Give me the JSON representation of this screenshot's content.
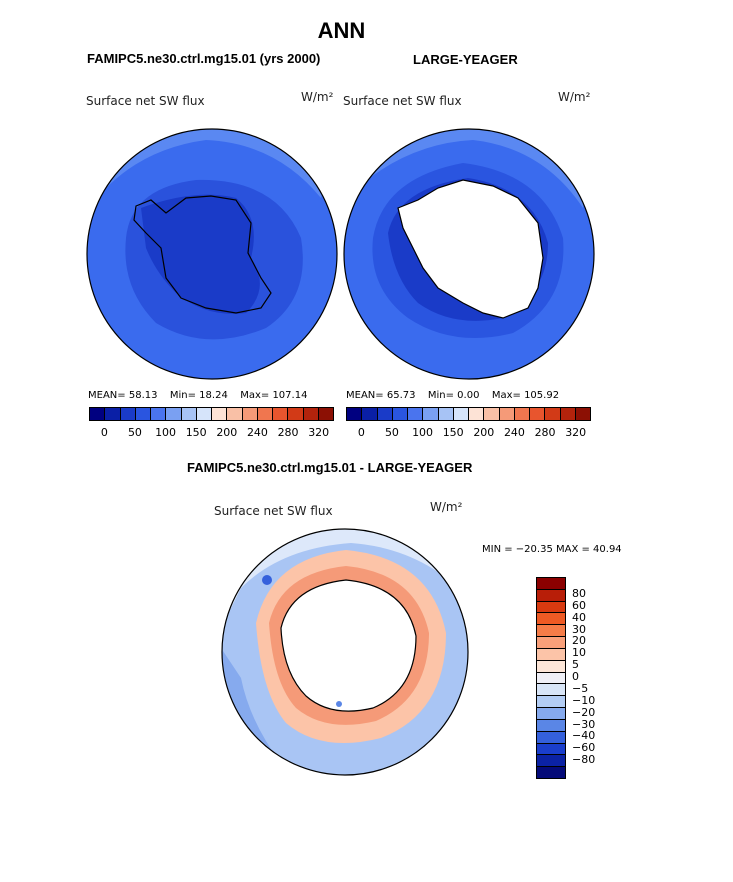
{
  "page_title": "ANN",
  "panels": [
    {
      "header": "FAMIPC5.ne30.ctrl.mg15.01 (yrs 2000)",
      "variable": "Surface net SW flux",
      "units": "W/m²",
      "stats": {
        "mean_label": "MEAN=",
        "mean": "58.13",
        "min_label": "Min=",
        "min": "18.24",
        "max_label": "Max=",
        "max": "107.14"
      }
    },
    {
      "header": "LARGE-YEAGER",
      "variable": "Surface net SW flux",
      "units": "W/m²",
      "stats": {
        "mean_label": "MEAN=",
        "mean": "65.73",
        "min_label": "Min=",
        "min": "0.00",
        "max_label": "Max=",
        "max": "105.92"
      }
    },
    {
      "header": "FAMIPC5.ne30.ctrl.mg15.01 - LARGE-YEAGER",
      "variable": "Surface net SW flux",
      "units": "W/m²",
      "stats": {
        "range_text": "MIN = −20.35 MAX =  40.94"
      }
    }
  ],
  "colorbars": {
    "absolute": {
      "colors": [
        "#000080",
        "#0a1fa6",
        "#1a3bc8",
        "#2a55e0",
        "#4a74ee",
        "#7aa0f2",
        "#a7c3f5",
        "#d6e4fa",
        "#fde3d6",
        "#f9c0a6",
        "#f59a78",
        "#f0764f",
        "#e8552e",
        "#d23a17",
        "#b3230c",
        "#8c1004"
      ],
      "labels": [
        "0",
        "50",
        "100",
        "150",
        "200",
        "240",
        "280",
        "320"
      ]
    },
    "difference": {
      "colors": [
        "#8b0000",
        "#b81e08",
        "#d83a10",
        "#ee5a24",
        "#f57c48",
        "#f9a07a",
        "#fcc4a8",
        "#fde6d8",
        "#f0f0f7",
        "#d8e5f7",
        "#b3cdf4",
        "#86aaee",
        "#5a86e6",
        "#3460dc",
        "#1a3ecc",
        "#0b22a4",
        "#040a78"
      ],
      "labels": [
        "80",
        "60",
        "40",
        "30",
        "20",
        "10",
        "5",
        "0",
        "−5",
        "−10",
        "−20",
        "−30",
        "−40",
        "−60",
        "−80"
      ]
    }
  }
}
